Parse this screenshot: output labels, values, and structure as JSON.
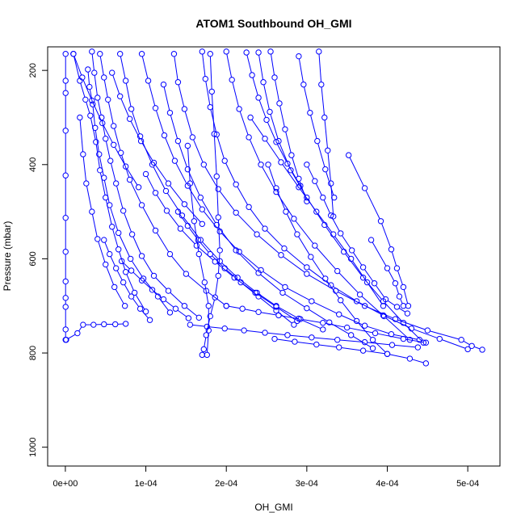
{
  "chart_data": {
    "type": "line",
    "title": "ATOM1 Southbound OH_GMI",
    "xlabel": "OH_GMI",
    "ylabel": "Pressure (mbar)",
    "xlim": [
      -2.2e-05,
      0.00054
    ],
    "ylim": [
      1040,
      150
    ],
    "y_reversed": true,
    "x_ticks": [
      0,
      0.0001,
      0.0002,
      0.0003,
      0.0004,
      0.0005
    ],
    "x_tick_labels": [
      "0e+00",
      "1e-04",
      "2e-04",
      "3e-04",
      "4e-04",
      "5e-04"
    ],
    "y_ticks": [
      200,
      400,
      600,
      800,
      1000
    ],
    "y_tick_labels": [
      "200",
      "400",
      "600",
      "800",
      "1000"
    ],
    "color": "#0000ff",
    "marker": "open-circle",
    "line_style": "segments-between-points",
    "grid": false,
    "legend": "none",
    "series": [
      {
        "x": [
          3e-07,
          3e-07,
          3e-07,
          3e-07,
          3e-07,
          3e-07,
          3e-07,
          3e-07,
          3e-07,
          3e-07,
          3e-07,
          3e-07
        ],
        "y": [
          165,
          222,
          248,
          328,
          423,
          513,
          585,
          648,
          683,
          702,
          750,
          772
        ]
      },
      {
        "x": [
          1e-06,
          1.5e-05,
          2.2e-05,
          3.5e-05,
          4.8e-05,
          6.2e-05,
          7.5e-05
        ],
        "y": [
          772,
          758,
          740,
          740,
          739,
          739,
          738
        ]
      },
      {
        "x": [
          1e-05,
          1.8e-05,
          2.5e-05,
          3.1e-05,
          3.8e-05,
          4.3e-05,
          5e-05,
          5.8e-05,
          6.6e-05,
          7.5e-05,
          8.6e-05,
          0.0001
        ],
        "y": [
          165,
          222,
          262,
          296,
          352,
          412,
          470,
          532,
          580,
          628,
          672,
          712
        ]
      },
      {
        "x": [
          2.8e-05,
          3e-05,
          3.4e-05,
          3.7e-05,
          4.2e-05,
          4.8e-05,
          5.5e-05,
          6.6e-05,
          8.1e-05,
          9.7e-05,
          0.000115,
          0.00013
        ],
        "y": [
          198,
          235,
          272,
          322,
          378,
          428,
          486,
          545,
          600,
          642,
          680,
          714
        ]
      },
      {
        "x": [
          3.3e-05,
          3.6e-05,
          4e-05,
          4.5e-05,
          5e-05,
          5.6e-05,
          6.3e-05,
          7.2e-05,
          8.3e-05,
          9.5e-05,
          0.00011,
          0.000128,
          0.000148,
          0.000166
        ],
        "y": [
          160,
          205,
          258,
          300,
          345,
          392,
          440,
          498,
          548,
          594,
          636,
          668,
          700,
          725
        ]
      },
      {
        "x": [
          1.8e-05,
          2.2e-05,
          2.6e-05,
          3.3e-05,
          4e-05,
          5e-05,
          6.1e-05,
          7.4e-05
        ],
        "y": [
          300,
          378,
          440,
          500,
          558,
          612,
          660,
          700
        ]
      },
      {
        "x": [
          4.3e-05,
          4.8e-05,
          5.3e-05,
          6e-05,
          6.9e-05,
          8e-05,
          9.5e-05,
          0.000112,
          0.00013,
          0.00015,
          0.000175,
          0.0002
        ],
        "y": [
          165,
          215,
          262,
          318,
          375,
          432,
          486,
          540,
          590,
          632,
          668,
          700
        ]
      },
      {
        "x": [
          6.8e-05,
          7.5e-05,
          8.2e-05,
          9.3e-05,
          0.000108,
          0.000125,
          0.000145,
          0.000168,
          0.000192,
          0.000214,
          0.000238,
          0.000262,
          0.00029,
          0.00032
        ],
        "y": [
          165,
          222,
          282,
          340,
          400,
          456,
          508,
          560,
          605,
          640,
          672,
          700,
          727,
          750
        ]
      },
      {
        "x": [
          9.5e-05,
          0.000103,
          0.000112,
          0.000123,
          0.000136,
          0.000152,
          0.00017,
          0.000192,
          0.000216,
          0.000243,
          0.000273,
          0.000306,
          0.00034,
          0.000372,
          0.000405,
          0.00044
        ],
        "y": [
          165,
          222,
          280,
          338,
          392,
          445,
          495,
          542,
          585,
          624,
          660,
          690,
          718,
          742,
          760,
          772
        ]
      },
      {
        "x": [
          0.000135,
          0.00014,
          0.000148,
          0.000158,
          0.000172,
          0.00019,
          0.000212,
          0.000238,
          0.000268,
          0.0003,
          0.000336,
          0.000372,
          0.00041,
          0.00045,
          0.000492,
          0.000505,
          0.000518
        ],
        "y": [
          165,
          225,
          282,
          342,
          400,
          452,
          502,
          548,
          592,
          632,
          668,
          700,
          728,
          752,
          772,
          785,
          793
        ]
      },
      {
        "x": [
          0.00017,
          0.000174,
          0.00018,
          0.000188,
          0.000198,
          0.000212,
          0.000228,
          0.000248,
          0.000272,
          0.0003,
          0.00033,
          0.000362,
          0.000395,
          0.00043,
          0.000465,
          0.0005
        ],
        "y": [
          160,
          218,
          278,
          336,
          392,
          442,
          490,
          536,
          578,
          618,
          656,
          690,
          720,
          748,
          770,
          792
        ]
      },
      {
        "x": [
          0.0002,
          0.000207,
          0.000216,
          0.000228,
          0.000243,
          0.000262,
          0.000284,
          0.00031,
          0.000338,
          0.000366,
          0.000396,
          0.000428
        ],
        "y": [
          160,
          220,
          282,
          342,
          400,
          458,
          515,
          572,
          626,
          676,
          722,
          772
        ]
      },
      {
        "x": [
          0.00024,
          0.000246,
          0.000254,
          0.000265,
          0.00028,
          0.0003,
          0.000322,
          0.000346,
          0.00037,
          0.000395,
          0.00042,
          0.000445
        ],
        "y": [
          162,
          225,
          288,
          350,
          412,
          470,
          528,
          585,
          640,
          690,
          736,
          778
        ]
      },
      {
        "x": [
          0.00023,
          0.000248,
          0.000268,
          0.00029,
          0.000312,
          0.000333,
          0.000355,
          0.000375,
          0.000395
        ],
        "y": [
          300,
          345,
          395,
          448,
          500,
          548,
          600,
          650,
          700
        ]
      },
      {
        "x": [
          0.00018,
          0.000182,
          0.000185,
          0.000188,
          0.00019,
          0.000192,
          0.00019,
          0.000186,
          0.00018,
          0.000175,
          0.000172,
          0.00017
        ],
        "y": [
          165,
          245,
          335,
          425,
          512,
          582,
          636,
          682,
          722,
          762,
          792,
          804
        ]
      },
      {
        "x": [
          0.000152,
          0.000155,
          0.00016,
          0.000166,
          0.000173,
          0.000178,
          0.000178,
          0.000176
        ],
        "y": [
          360,
          440,
          520,
          590,
          650,
          700,
          752,
          804
        ]
      },
      {
        "x": [
          0.000122,
          0.00013,
          0.00014,
          0.000152,
          0.000168,
          0.000188,
          0.000212,
          0.00024,
          0.00027,
          0.0003,
          0.000328,
          0.000355,
          0.000382
        ],
        "y": [
          230,
          290,
          350,
          410,
          470,
          528,
          582,
          630,
          672,
          705,
          735,
          762,
          790
        ]
      },
      {
        "x": [
          0.0001,
          0.000112,
          0.000126,
          0.000143,
          0.000163,
          0.000186,
          0.00021,
          0.000236,
          0.000262,
          0.000288
        ],
        "y": [
          420,
          460,
          498,
          536,
          572,
          606,
          640,
          672,
          702,
          732
        ]
      },
      {
        "x": [
          0.000252,
          0.000262,
          0.000274,
          0.000288,
          0.000305,
          0.000323,
          0.000342,
          0.000362,
          0.000382,
          0.0004
        ],
        "y": [
          400,
          450,
          500,
          548,
          596,
          642,
          688,
          732,
          772,
          802
        ]
      },
      {
        "x": [
          0.0003,
          0.00031,
          0.00032,
          0.00033,
          0.000342,
          0.000356,
          0.00037,
          0.000384,
          0.000398,
          0.000412,
          0.000425
        ],
        "y": [
          400,
          435,
          470,
          508,
          546,
          582,
          618,
          652,
          686,
          702,
          716
        ]
      },
      {
        "x": [
          0.000352,
          0.000372,
          0.000392,
          0.000405,
          0.000412,
          0.00042,
          0.000426
        ],
        "y": [
          380,
          450,
          520,
          580,
          620,
          660,
          700
        ]
      },
      {
        "x": [
          0.00038,
          0.0004,
          0.00041,
          0.000415,
          0.00042
        ],
        "y": [
          560,
          620,
          652,
          680,
          700
        ]
      },
      {
        "x": [
          0.0002,
          0.00022,
          0.00024,
          0.000265,
          0.000292,
          0.00032,
          0.00035,
          0.000385,
          0.00042,
          0.000448
        ],
        "y": [
          700,
          706,
          713,
          720,
          728,
          736,
          746,
          758,
          770,
          778
        ]
      },
      {
        "x": [
          0.000155,
          0.000176,
          0.000198,
          0.000222,
          0.000248,
          0.000276,
          0.000306,
          0.000338,
          0.000372,
          0.000406,
          0.000438
        ],
        "y": [
          740,
          744,
          748,
          752,
          757,
          762,
          767,
          772,
          777,
          783,
          788
        ]
      },
      {
        "x": [
          0.00026,
          0.000285,
          0.000312,
          0.00034,
          0.00037,
          0.0004,
          0.000428,
          0.000448
        ],
        "y": [
          770,
          776,
          782,
          788,
          795,
          802,
          812,
          822
        ]
      },
      {
        "x": [
          7e-05,
          8.2e-05,
          9.5e-05,
          0.000108,
          0.000122,
          0.000137,
          0.000153
        ],
        "y": [
          605,
          625,
          646,
          666,
          686,
          706,
          726
        ]
      },
      {
        "x": [
          4.8e-05,
          5.5e-05,
          6.3e-05,
          7.2e-05,
          8.2e-05,
          9.3e-05,
          0.000105
        ],
        "y": [
          560,
          590,
          620,
          650,
          680,
          706,
          730
        ]
      },
      {
        "x": [
          0.000315,
          0.000318,
          0.000322,
          0.000326,
          0.00033,
          0.000333
        ],
        "y": [
          160,
          230,
          300,
          370,
          440,
          510
        ]
      },
      {
        "x": [
          0.000225,
          0.000232,
          0.00024,
          0.00025,
          0.000262,
          0.000276,
          0.000292
        ],
        "y": [
          162,
          210,
          258,
          305,
          352,
          398,
          445
        ]
      },
      {
        "x": [
          0.00029,
          0.000296,
          0.000304,
          0.000313,
          0.000323,
          0.000334
        ],
        "y": [
          170,
          230,
          290,
          350,
          410,
          470
        ]
      },
      {
        "x": [
          1e-05,
          2.1e-05,
          3.3e-05,
          4.6e-05,
          6e-05,
          7.5e-05,
          9.1e-05
        ],
        "y": [
          165,
          215,
          264,
          312,
          358,
          404,
          448
        ]
      },
      {
        "x": [
          5.8e-05,
          6.8e-05,
          8e-05,
          9.4e-05,
          0.00011,
          0.000128,
          0.000148,
          0.00017
        ],
        "y": [
          205,
          255,
          303,
          350,
          396,
          440,
          484,
          526
        ]
      },
      {
        "x": [
          0.000255,
          0.00026,
          0.000266,
          0.000273,
          0.000281,
          0.00029,
          0.0003
        ],
        "y": [
          160,
          215,
          270,
          325,
          380,
          430,
          478
        ]
      },
      {
        "x": [
          0.00014,
          0.000152,
          0.000165,
          0.00018,
          0.000198,
          0.000218,
          0.00024,
          0.000262,
          0.000284
        ],
        "y": [
          500,
          530,
          560,
          590,
          620,
          650,
          680,
          710,
          740
        ]
      }
    ]
  }
}
